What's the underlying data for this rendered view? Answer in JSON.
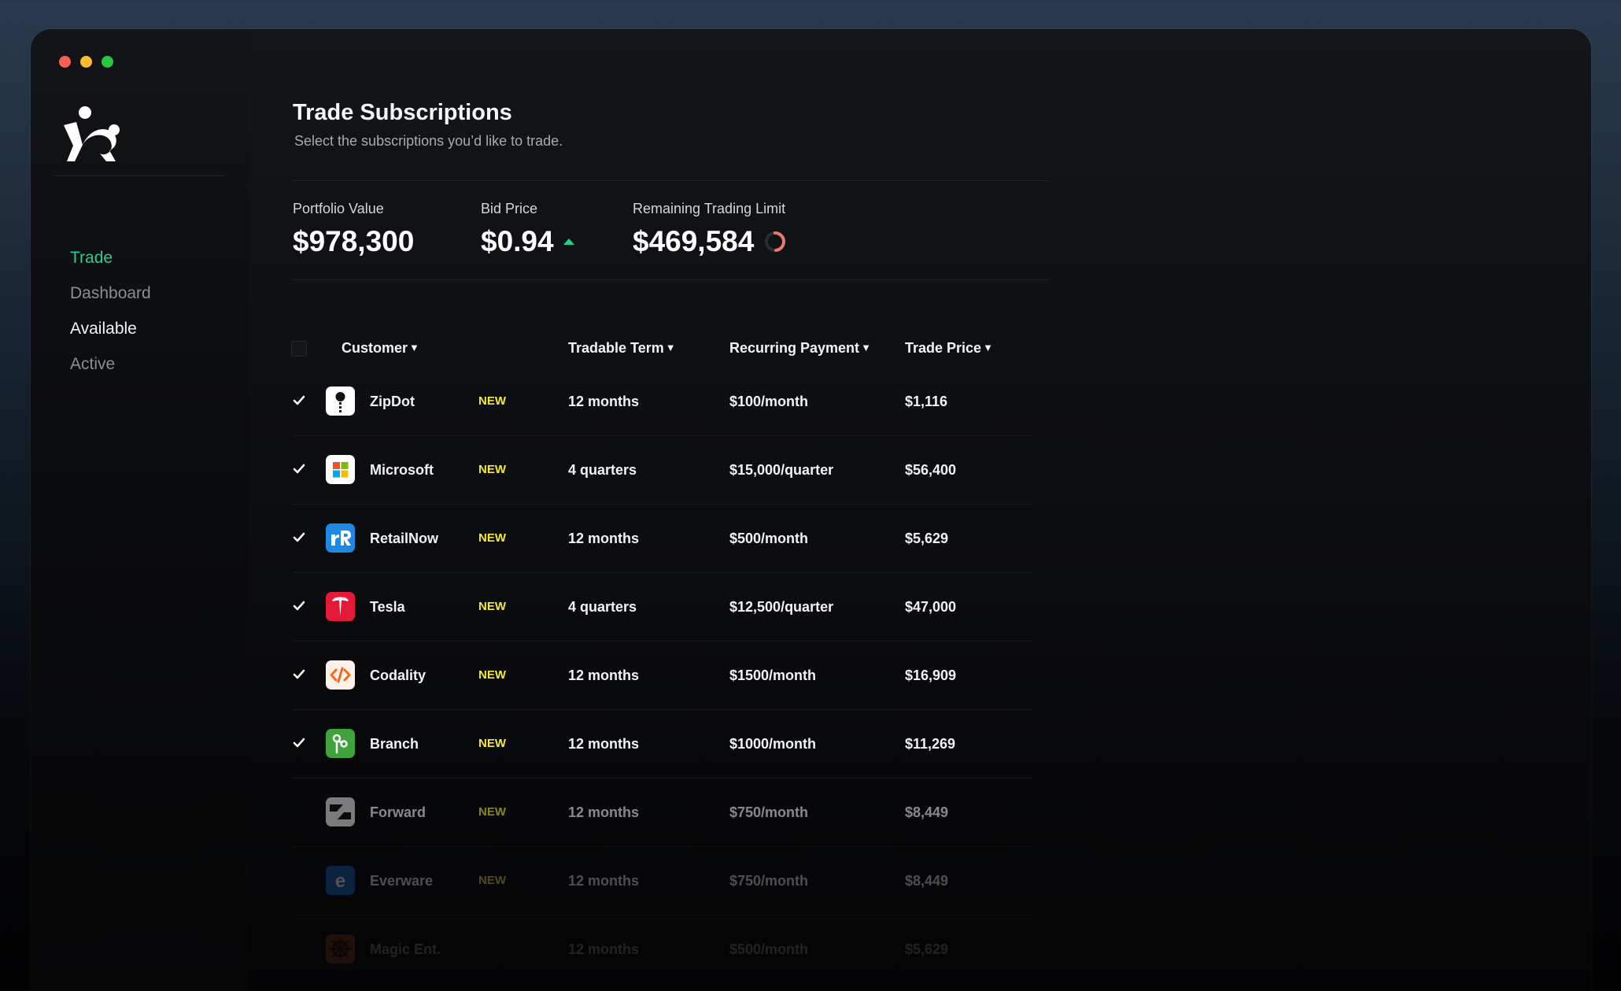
{
  "nav": {
    "items": [
      {
        "label": "Trade",
        "state": "active"
      },
      {
        "label": "Dashboard",
        "state": "dim"
      },
      {
        "label": "Available",
        "state": "bright"
      },
      {
        "label": "Active",
        "state": "dim"
      }
    ]
  },
  "header": {
    "title": "Trade Subscriptions",
    "subtitle": "Select the subscriptions you’d like to trade."
  },
  "stats": {
    "portfolio": {
      "label": "Portfolio Value",
      "value": "$978,300"
    },
    "bid": {
      "label": "Bid Price",
      "value": "$0.94",
      "trend": "up"
    },
    "limit": {
      "label": "Remaining Trading Limit",
      "value": "$469,584",
      "fraction": 0.48
    }
  },
  "table": {
    "columns": {
      "customer": "Customer",
      "term": "Tradable Term",
      "payment": "Recurring Payment",
      "price": "Trade Price"
    },
    "rows": [
      {
        "customer": "ZipDot",
        "badge": "NEW",
        "term": "12 months",
        "payment": "$100/month",
        "price": "$1,116",
        "checked": true,
        "icon": "zipdot-logo",
        "opacity": 1
      },
      {
        "customer": "Microsoft",
        "badge": "NEW",
        "term": "4 quarters",
        "payment": "$15,000/quarter",
        "price": "$56,400",
        "checked": true,
        "icon": "microsoft-logo",
        "opacity": 1
      },
      {
        "customer": "RetailNow",
        "badge": "NEW",
        "term": "12 months",
        "payment": "$500/month",
        "price": "$5,629",
        "checked": true,
        "icon": "retailnow-logo",
        "opacity": 1
      },
      {
        "customer": "Tesla",
        "badge": "NEW",
        "term": "4 quarters",
        "payment": "$12,500/quarter",
        "price": "$47,000",
        "checked": true,
        "icon": "tesla-logo",
        "opacity": 1
      },
      {
        "customer": "Codality",
        "badge": "NEW",
        "term": "12 months",
        "payment": "$1500/month",
        "price": "$16,909",
        "checked": true,
        "icon": "codality-logo",
        "opacity": 1
      },
      {
        "customer": "Branch",
        "badge": "NEW",
        "term": "12 months",
        "payment": "$1000/month",
        "price": "$11,269",
        "checked": true,
        "icon": "branch-logo",
        "opacity": 1
      },
      {
        "customer": "Forward",
        "badge": "NEW",
        "term": "12 months",
        "payment": "$750/month",
        "price": "$8,449",
        "checked": false,
        "icon": "forward-logo",
        "opacity": 0.55
      },
      {
        "customer": "Everware",
        "badge": "NEW",
        "term": "12 months",
        "payment": "$750/month",
        "price": "$8,449",
        "checked": false,
        "icon": "everware-logo",
        "opacity": 0.3
      },
      {
        "customer": "Magic Ent.",
        "badge": "",
        "term": "12 months",
        "payment": "$500/month",
        "price": "$5,629",
        "checked": false,
        "icon": "magic-logo",
        "opacity": 0.12
      }
    ]
  },
  "colors": {
    "accent": "#22d18b",
    "badge": "#f4e93a"
  }
}
